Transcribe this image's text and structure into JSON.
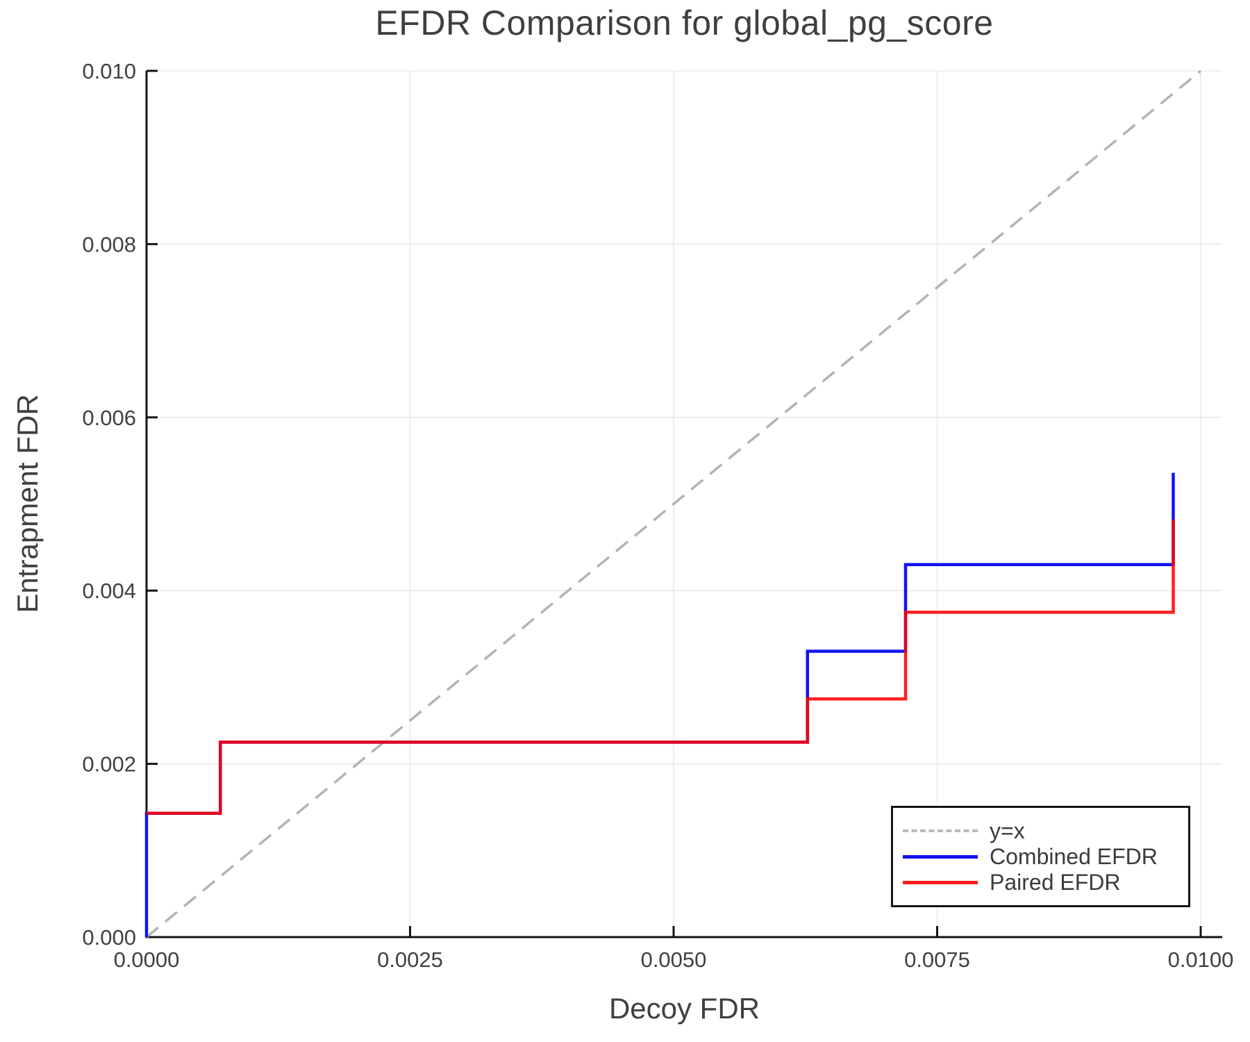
{
  "figure": {
    "title": "EFDR Comparison for global_pg_score",
    "xlabel": "Decoy FDR",
    "ylabel": "Entrapment FDR"
  },
  "chart_data": {
    "type": "line",
    "title": "EFDR Comparison for global_pg_score",
    "xlabel": "Decoy FDR",
    "ylabel": "Entrapment FDR",
    "x_range": [
      0.0,
      0.0102
    ],
    "y_range": [
      0.0,
      0.01
    ],
    "grid": true,
    "legend_position": "lower right",
    "x_ticks": {
      "values": [
        0.0,
        0.0025,
        0.005,
        0.0075,
        0.01
      ],
      "labels": [
        "0.0000",
        "0.0025",
        "0.0050",
        "0.0075",
        "0.0100"
      ]
    },
    "y_ticks": {
      "values": [
        0.0,
        0.002,
        0.004,
        0.006,
        0.008,
        0.01
      ],
      "labels": [
        "0.000",
        "0.002",
        "0.004",
        "0.006",
        "0.008",
        "0.010"
      ]
    },
    "series": [
      {
        "name": "y=x",
        "style": "dashed",
        "color": "#b3b3b3",
        "width": 3.5,
        "points": [
          [
            0.0,
            0.0
          ],
          [
            0.01,
            0.01
          ]
        ]
      },
      {
        "name": "Combined EFDR",
        "style": "solid",
        "color": "#1212f5",
        "width": 4.5,
        "points": [
          [
            0.0,
            0.0
          ],
          [
            0.0,
            0.00143
          ],
          [
            0.0007,
            0.00143
          ],
          [
            0.0007,
            0.00225
          ],
          [
            0.00627,
            0.00225
          ],
          [
            0.00627,
            0.0033
          ],
          [
            0.0072,
            0.0033
          ],
          [
            0.0072,
            0.0043
          ],
          [
            0.00974,
            0.0043
          ],
          [
            0.00974,
            0.00536
          ]
        ]
      },
      {
        "name": "Paired EFDR",
        "style": "solid",
        "color": "#ff0000",
        "opacity": 0.88,
        "width": 4.5,
        "points": [
          [
            0.0,
            0.00143
          ],
          [
            0.0007,
            0.00143
          ],
          [
            0.0007,
            0.00225
          ],
          [
            0.00627,
            0.00225
          ],
          [
            0.00627,
            0.00275
          ],
          [
            0.0072,
            0.00275
          ],
          [
            0.0072,
            0.00375
          ],
          [
            0.00974,
            0.00375
          ],
          [
            0.00974,
            0.00482
          ]
        ]
      }
    ]
  },
  "legend": {
    "entries": [
      {
        "label": "y=x"
      },
      {
        "label": "Combined EFDR"
      },
      {
        "label": "Paired EFDR"
      }
    ]
  },
  "colors": {
    "text": "#3f3f3f",
    "tick_label": "#404040",
    "spine": "#141414",
    "grid": "#e9e9e9",
    "diagonal": "#b3b3b3",
    "combined": "#1212f5",
    "paired": "#ff1a1a",
    "legend_border": "#141414",
    "background": "#ffffff"
  }
}
